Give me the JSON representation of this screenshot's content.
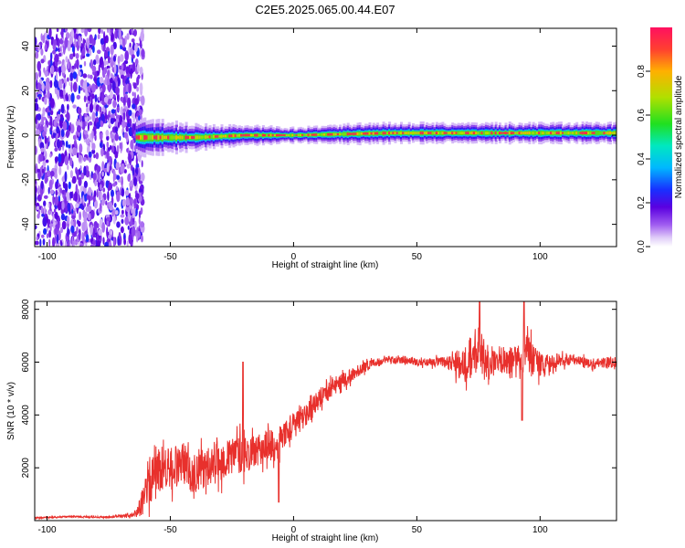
{
  "title": "C2E5.2025.065.00.44.E07",
  "chart_data": [
    {
      "type": "heatmap",
      "title": "",
      "xlabel": "Height of straight line (km)",
      "ylabel": "Frequency (Hz)",
      "xlim": [
        -105,
        131
      ],
      "ylim": [
        -50,
        48
      ],
      "x_ticks": [
        -100,
        -50,
        0,
        50,
        100
      ],
      "y_ticks": [
        -40,
        -20,
        0,
        20,
        40
      ],
      "colorbar": {
        "label": "Normalized spectral amplitude",
        "range": [
          0,
          1
        ],
        "ticks": [
          0.0,
          0.2,
          0.4,
          0.6,
          0.8
        ],
        "colormap": [
          "#ffffff",
          "#d8c4f5",
          "#8a3ae8",
          "#5a00d8",
          "#2020ff",
          "#00c0ff",
          "#00e8a0",
          "#40e000",
          "#c0e000",
          "#ffb000",
          "#ff5030",
          "#ff1050"
        ]
      },
      "regions": [
        {
          "x_range": [
            -105,
            -64
          ],
          "description_level": "broadband",
          "freq_range": [
            -50,
            48
          ],
          "amplitude": 0.15
        },
        {
          "x_range": [
            -64,
            131
          ],
          "description_level": "narrow",
          "center_freq": [
            [
              -64,
              -1
            ],
            [
              -40,
              -1
            ],
            [
              -20,
              0
            ],
            [
              0,
              0
            ],
            [
              20,
              0.5
            ],
            [
              40,
              1
            ],
            [
              70,
              1
            ],
            [
              100,
              1
            ],
            [
              131,
              1
            ]
          ],
          "half_width": [
            [
              -64,
              8
            ],
            [
              -50,
              6
            ],
            [
              -20,
              4
            ],
            [
              0,
              3
            ],
            [
              20,
              4
            ],
            [
              60,
              4
            ],
            [
              131,
              4
            ]
          ],
          "peak_amplitude": 0.95
        }
      ]
    },
    {
      "type": "line",
      "title": "",
      "xlabel": "Height of straight line (km)",
      "ylabel": "SNR (10 * v/v)",
      "xlim": [
        -105,
        131
      ],
      "ylim": [
        0,
        8300
      ],
      "x_ticks": [
        -100,
        -50,
        0,
        50,
        100
      ],
      "y_ticks": [
        2000,
        4000,
        6000,
        8000
      ],
      "color": "#e8302c",
      "series": [
        {
          "x": [
            -105,
            -90,
            -75,
            -65,
            -62,
            -60,
            -57,
            -54,
            -50,
            -45,
            -40,
            -35,
            -30,
            -25,
            -21,
            -20,
            -15,
            -10,
            -6,
            -5,
            0,
            5,
            10,
            15,
            20,
            25,
            30,
            35,
            40,
            45,
            50,
            55,
            60,
            65,
            70,
            73,
            75,
            77,
            80,
            85,
            90,
            93,
            95,
            100,
            105,
            110,
            115,
            120,
            125,
            131
          ],
          "y": [
            100,
            150,
            130,
            200,
            500,
            1200,
            1800,
            2000,
            1900,
            2200,
            1800,
            2100,
            2200,
            2400,
            2600,
            2500,
            2600,
            2900,
            2700,
            3200,
            3600,
            4000,
            4600,
            5000,
            5300,
            5600,
            5900,
            6000,
            6100,
            6100,
            6000,
            6000,
            6000,
            5900,
            6000,
            6200,
            6400,
            6200,
            6000,
            6100,
            5900,
            6000,
            6300,
            5800,
            6000,
            6100,
            6100,
            5900,
            6000,
            6000
          ],
          "noise_amplitude": [
            30,
            30,
            30,
            80,
            400,
            900,
            1000,
            900,
            900,
            800,
            800,
            700,
            800,
            700,
            800,
            700,
            600,
            600,
            600,
            500,
            500,
            450,
            400,
            350,
            300,
            250,
            200,
            150,
            150,
            150,
            150,
            150,
            200,
            400,
            800,
            1000,
            1000,
            900,
            600,
            500,
            700,
            900,
            800,
            500,
            300,
            250,
            200,
            200,
            200,
            200
          ]
        }
      ]
    }
  ]
}
